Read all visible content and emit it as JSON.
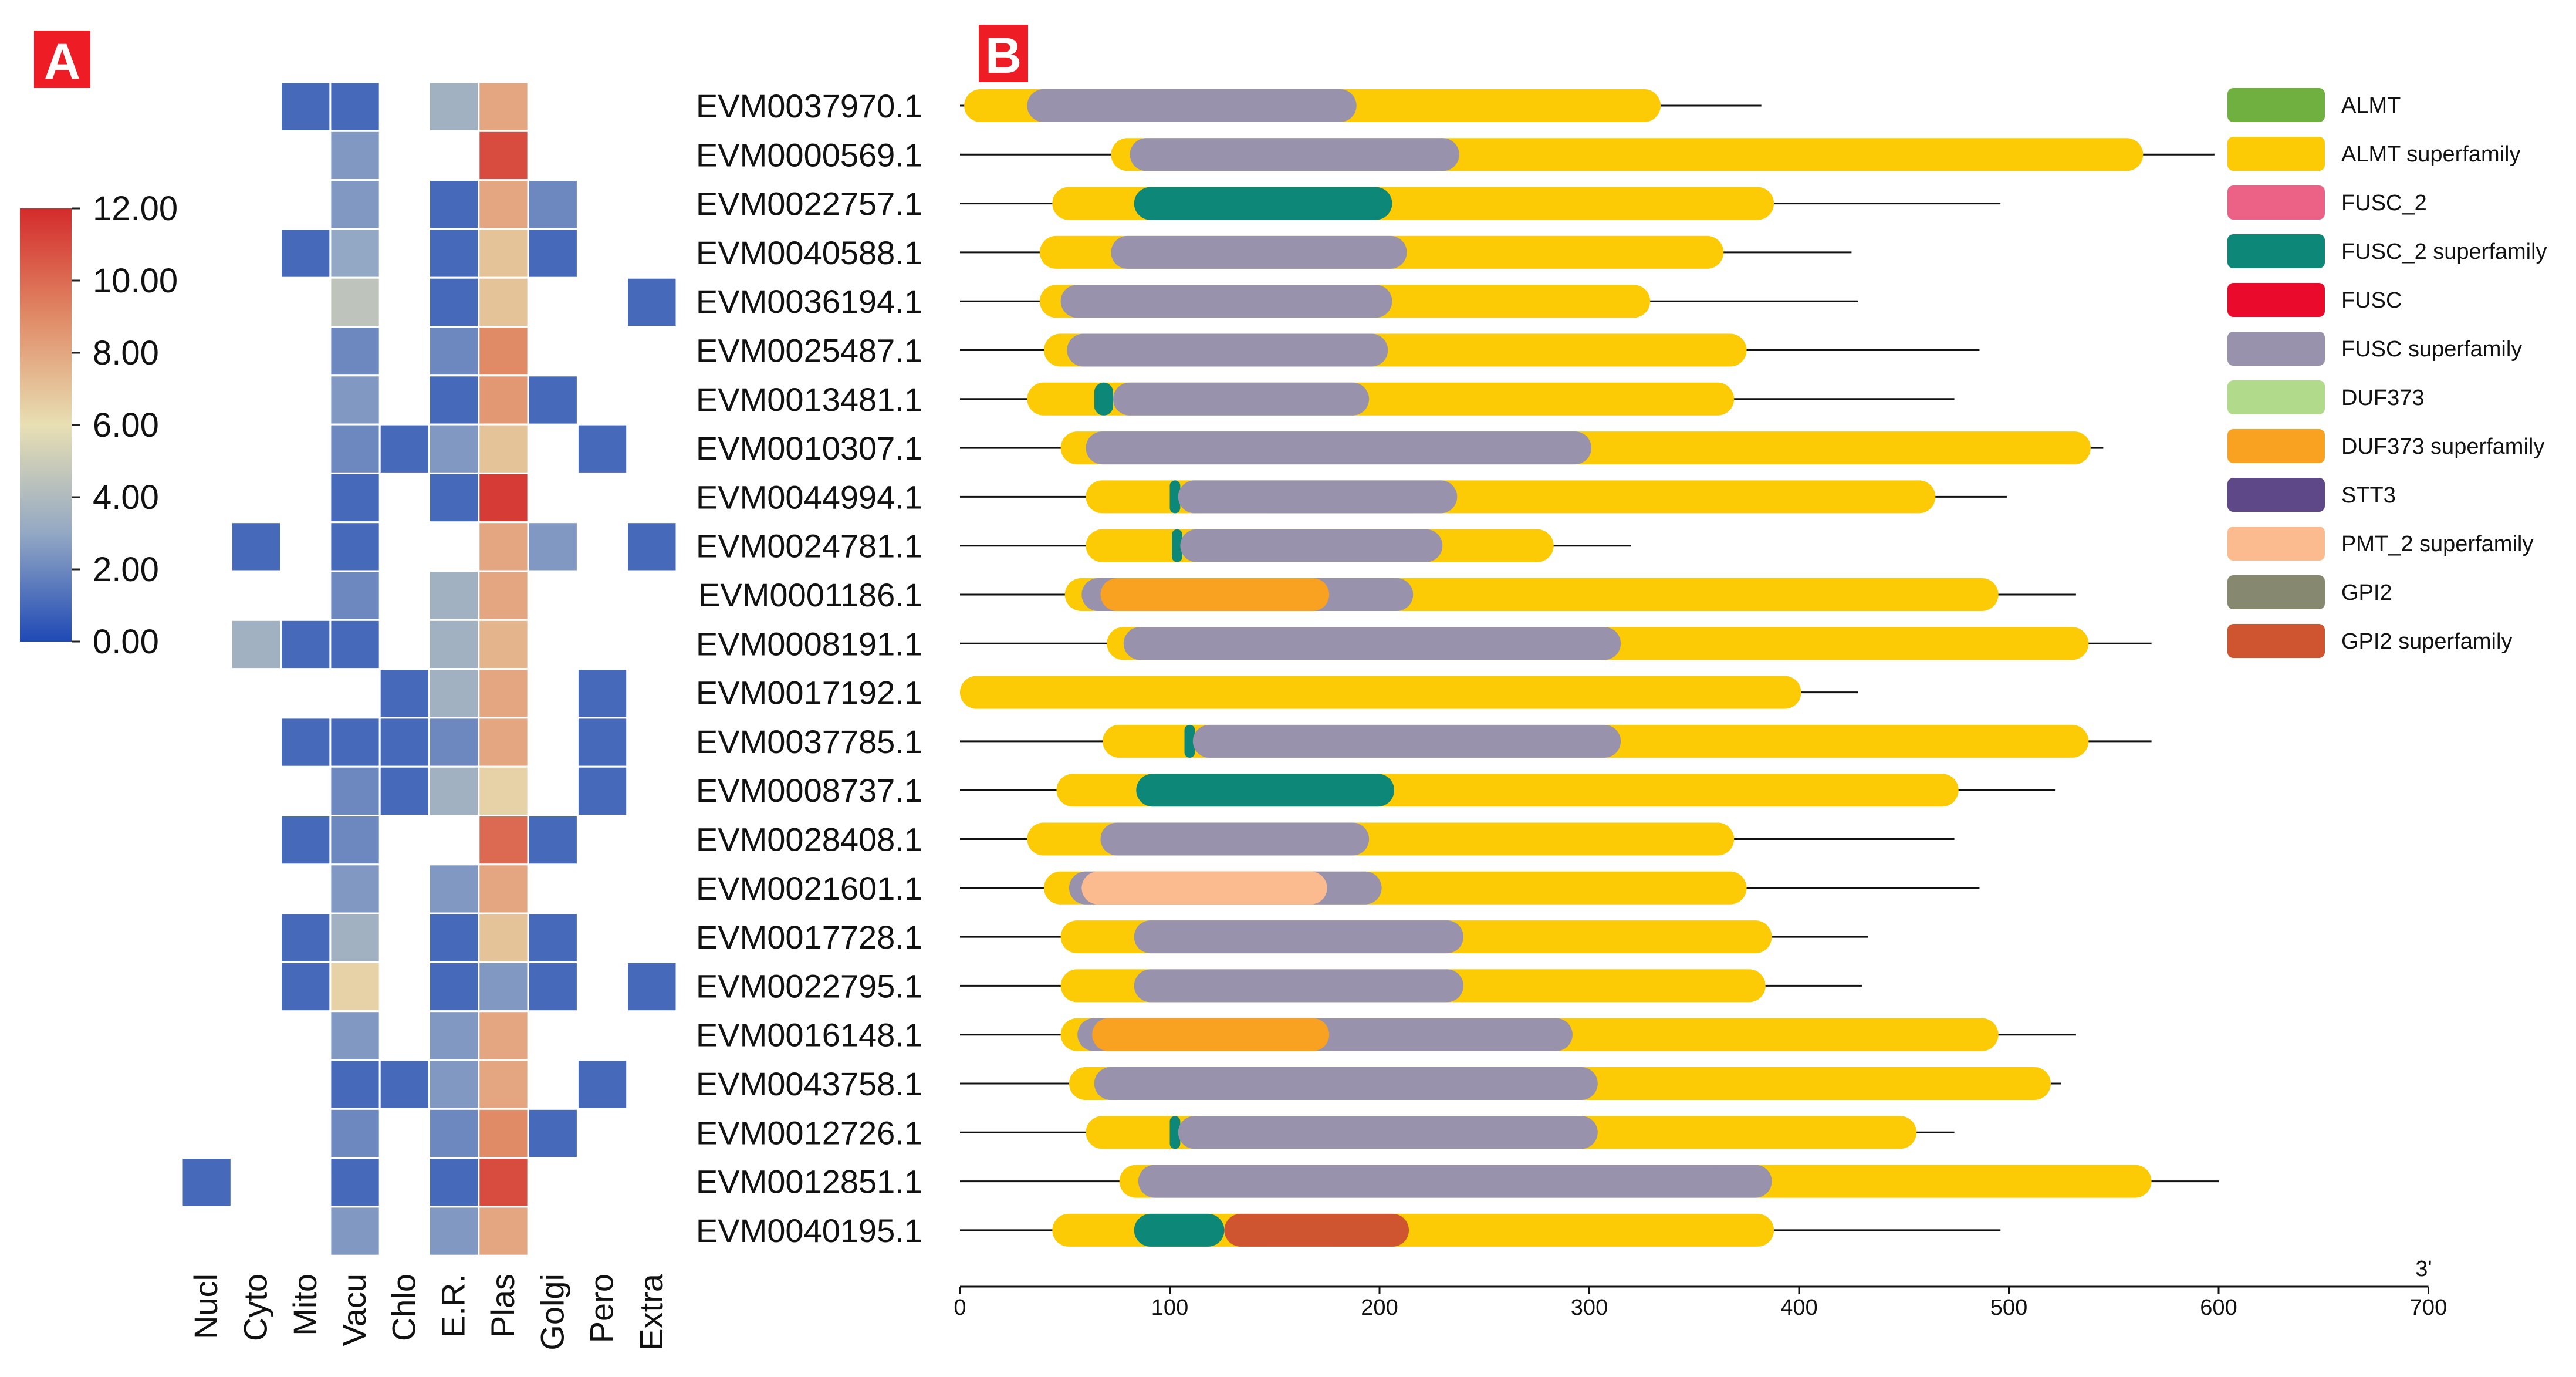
{
  "panels": {
    "a_label": "A",
    "b_label": "B"
  },
  "colors": {
    "panel_label_bg": "#ee1c25",
    "heat_scale": [
      "#1f49b5",
      "#93a8c4",
      "#e8dfb3",
      "#e08a66",
      "#d42b2b"
    ]
  },
  "chart_data": [
    {
      "type": "heatmap",
      "description": "Subcellular localization prediction scores",
      "columns": [
        "Nucl",
        "Cyto",
        "Mito",
        "Vacu",
        "Chlo",
        "E.R.",
        "Plas",
        "Golgi",
        "Pero",
        "Extra"
      ],
      "rows": [
        "EVM0037970.1",
        "EVM0000569.1",
        "EVM0022757.1",
        "EVM0040588.1",
        "EVM0036194.1",
        "EVM0025487.1",
        "EVM0013481.1",
        "EVM0010307.1",
        "EVM0044994.1",
        "EVM0024781.1",
        "EVM0001186.1",
        "EVM0008191.1",
        "EVM0017192.1",
        "EVM0037785.1",
        "EVM0008737.1",
        "EVM0028408.1",
        "EVM0021601.1",
        "EVM0017728.1",
        "EVM0022795.1",
        "EVM0016148.1",
        "EVM0043758.1",
        "EVM0012726.1",
        "EVM0012851.1",
        "EVM0040195.1"
      ],
      "values": [
        [
          null,
          null,
          1,
          1,
          null,
          3.5,
          8,
          null,
          null,
          null
        ],
        [
          null,
          null,
          null,
          2.5,
          null,
          null,
          11,
          null,
          null,
          null
        ],
        [
          null,
          null,
          null,
          2.5,
          null,
          1,
          8,
          2,
          null,
          null
        ],
        [
          null,
          null,
          1,
          3,
          null,
          1,
          7,
          1,
          null,
          null
        ],
        [
          null,
          null,
          null,
          4.5,
          null,
          1,
          7,
          null,
          null,
          1
        ],
        [
          null,
          null,
          null,
          2,
          null,
          2,
          9,
          null,
          null,
          null
        ],
        [
          null,
          null,
          null,
          2.5,
          null,
          1,
          8.5,
          1,
          null,
          null
        ],
        [
          null,
          null,
          null,
          2,
          1,
          2.5,
          7,
          null,
          1,
          null
        ],
        [
          null,
          null,
          null,
          1,
          null,
          1,
          11.5,
          null,
          null,
          null
        ],
        [
          null,
          1,
          null,
          1,
          null,
          null,
          8,
          2.5,
          null,
          1
        ],
        [
          null,
          null,
          null,
          2,
          null,
          3.5,
          8,
          null,
          null,
          null
        ],
        [
          null,
          3.5,
          1,
          1,
          null,
          3.5,
          7.5,
          null,
          null,
          null
        ],
        [
          null,
          null,
          null,
          null,
          1,
          3.5,
          8,
          null,
          1,
          null
        ],
        [
          null,
          null,
          1,
          1,
          1,
          2,
          8,
          null,
          1,
          null
        ],
        [
          null,
          null,
          null,
          2,
          1,
          3.5,
          6.5,
          null,
          1,
          null
        ],
        [
          null,
          null,
          1,
          2,
          null,
          null,
          10,
          1,
          null,
          null
        ],
        [
          null,
          null,
          null,
          2.5,
          null,
          2.5,
          8,
          null,
          null,
          null
        ],
        [
          null,
          null,
          1,
          3.5,
          null,
          1,
          7,
          1,
          null,
          null
        ],
        [
          null,
          null,
          1,
          6.5,
          null,
          1,
          2.5,
          1,
          null,
          1
        ],
        [
          null,
          null,
          null,
          2.5,
          null,
          2.5,
          8,
          null,
          null,
          null
        ],
        [
          null,
          null,
          null,
          1,
          1,
          2.5,
          8,
          null,
          1,
          null
        ],
        [
          null,
          null,
          null,
          2,
          null,
          2,
          9,
          1,
          null,
          null
        ],
        [
          1,
          null,
          null,
          1,
          null,
          1,
          11,
          null,
          null,
          null
        ],
        [
          null,
          null,
          null,
          2.5,
          null,
          2.5,
          8,
          null,
          null,
          null
        ]
      ],
      "colorbar_ticks": [
        "12.00",
        "10.00",
        "8.00",
        "6.00",
        "4.00",
        "2.00",
        "0.00"
      ],
      "range": [
        0,
        12
      ]
    },
    {
      "type": "bar",
      "description": "Protein domain architecture",
      "x_ticks": [
        0,
        100,
        200,
        300,
        400,
        500,
        600,
        700
      ],
      "x_tick_labels": [
        "0",
        "100",
        "200",
        "300",
        "400",
        "500",
        "600",
        "700"
      ],
      "x_end_label": "3'",
      "xlim": [
        0,
        700
      ],
      "legend": [
        {
          "label": "ALMT",
          "color": "#70b040"
        },
        {
          "label": "ALMT superfamily",
          "color": "#fccb05"
        },
        {
          "label": "FUSC_2",
          "color": "#ec6287"
        },
        {
          "label": "FUSC_2 superfamily",
          "color": "#0d8878"
        },
        {
          "label": "FUSC",
          "color": "#ea0a2c"
        },
        {
          "label": "FUSC superfamily",
          "color": "#9892ad"
        },
        {
          "label": "DUF373",
          "color": "#b1db8a"
        },
        {
          "label": "DUF373 superfamily",
          "color": "#f9a120"
        },
        {
          "label": "STT3",
          "color": "#5e4888"
        },
        {
          "label": "PMT_2 superfamily",
          "color": "#fbbb8f"
        },
        {
          "label": "GPI2",
          "color": "#868970"
        },
        {
          "label": "GPI2 superfamily",
          "color": "#cf5530"
        }
      ],
      "proteins": [
        {
          "name": "EVM0037970.1",
          "length": 382,
          "domains": [
            {
              "family": "ALMT superfamily",
              "start": 2,
              "end": 334
            },
            {
              "family": "FUSC superfamily",
              "start": 32,
              "end": 189
            }
          ]
        },
        {
          "name": "EVM0000569.1",
          "length": 598,
          "domains": [
            {
              "family": "ALMT superfamily",
              "start": 72,
              "end": 564
            },
            {
              "family": "FUSC superfamily",
              "start": 81,
              "end": 238
            }
          ]
        },
        {
          "name": "EVM0022757.1",
          "length": 496,
          "domains": [
            {
              "family": "ALMT superfamily",
              "start": 44,
              "end": 388
            },
            {
              "family": "FUSC_2 superfamily",
              "start": 83,
              "end": 206
            }
          ]
        },
        {
          "name": "EVM0040588.1",
          "length": 425,
          "domains": [
            {
              "family": "ALMT superfamily",
              "start": 38,
              "end": 364
            },
            {
              "family": "FUSC superfamily",
              "start": 72,
              "end": 213
            }
          ]
        },
        {
          "name": "EVM0036194.1",
          "length": 428,
          "domains": [
            {
              "family": "ALMT superfamily",
              "start": 38,
              "end": 329
            },
            {
              "family": "FUSC superfamily",
              "start": 48,
              "end": 206
            }
          ]
        },
        {
          "name": "EVM0025487.1",
          "length": 486,
          "domains": [
            {
              "family": "ALMT superfamily",
              "start": 40,
              "end": 375
            },
            {
              "family": "FUSC superfamily",
              "start": 51,
              "end": 204
            }
          ]
        },
        {
          "name": "EVM0013481.1",
          "length": 474,
          "domains": [
            {
              "family": "ALMT superfamily",
              "start": 32,
              "end": 369
            },
            {
              "family": "FUSC_2 superfamily",
              "start": 64,
              "end": 73
            },
            {
              "family": "FUSC superfamily",
              "start": 73,
              "end": 195
            }
          ]
        },
        {
          "name": "EVM0010307.1",
          "length": 545,
          "domains": [
            {
              "family": "ALMT superfamily",
              "start": 48,
              "end": 539
            },
            {
              "family": "FUSC superfamily",
              "start": 60,
              "end": 301
            }
          ]
        },
        {
          "name": "EVM0044994.1",
          "length": 499,
          "domains": [
            {
              "family": "ALMT superfamily",
              "start": 60,
              "end": 465
            },
            {
              "family": "FUSC_2 superfamily",
              "start": 100,
              "end": 105
            },
            {
              "family": "FUSC superfamily",
              "start": 104,
              "end": 237
            }
          ]
        },
        {
          "name": "EVM0024781.1",
          "length": 320,
          "domains": [
            {
              "family": "ALMT superfamily",
              "start": 60,
              "end": 283
            },
            {
              "family": "FUSC_2 superfamily",
              "start": 101,
              "end": 106
            },
            {
              "family": "FUSC superfamily",
              "start": 105,
              "end": 230
            }
          ]
        },
        {
          "name": "EVM0001186.1",
          "length": 532,
          "domains": [
            {
              "family": "ALMT superfamily",
              "start": 50,
              "end": 495
            },
            {
              "family": "FUSC superfamily",
              "start": 58,
              "end": 216
            },
            {
              "family": "DUF373 superfamily",
              "start": 67,
              "end": 176
            }
          ]
        },
        {
          "name": "EVM0008191.1",
          "length": 568,
          "domains": [
            {
              "family": "ALMT superfamily",
              "start": 70,
              "end": 538
            },
            {
              "family": "FUSC superfamily",
              "start": 78,
              "end": 315
            }
          ]
        },
        {
          "name": "EVM0017192.1",
          "length": 428,
          "domains": [
            {
              "family": "ALMT superfamily",
              "start": 0,
              "end": 401
            }
          ]
        },
        {
          "name": "EVM0037785.1",
          "length": 568,
          "domains": [
            {
              "family": "ALMT superfamily",
              "start": 68,
              "end": 538
            },
            {
              "family": "FUSC_2 superfamily",
              "start": 107,
              "end": 112
            },
            {
              "family": "FUSC superfamily",
              "start": 111,
              "end": 315
            }
          ]
        },
        {
          "name": "EVM0008737.1",
          "length": 522,
          "domains": [
            {
              "family": "ALMT superfamily",
              "start": 46,
              "end": 476
            },
            {
              "family": "FUSC_2 superfamily",
              "start": 84,
              "end": 207
            }
          ]
        },
        {
          "name": "EVM0028408.1",
          "length": 474,
          "domains": [
            {
              "family": "ALMT superfamily",
              "start": 32,
              "end": 369
            },
            {
              "family": "FUSC superfamily",
              "start": 67,
              "end": 195
            }
          ]
        },
        {
          "name": "EVM0021601.1",
          "length": 486,
          "domains": [
            {
              "family": "ALMT superfamily",
              "start": 40,
              "end": 375
            },
            {
              "family": "FUSC superfamily",
              "start": 52,
              "end": 201
            },
            {
              "family": "PMT_2 superfamily",
              "start": 58,
              "end": 175
            }
          ]
        },
        {
          "name": "EVM0017728.1",
          "length": 433,
          "domains": [
            {
              "family": "ALMT superfamily",
              "start": 48,
              "end": 387
            },
            {
              "family": "FUSC superfamily",
              "start": 83,
              "end": 240
            }
          ]
        },
        {
          "name": "EVM0022795.1",
          "length": 430,
          "domains": [
            {
              "family": "ALMT superfamily",
              "start": 48,
              "end": 384
            },
            {
              "family": "FUSC superfamily",
              "start": 83,
              "end": 240
            }
          ]
        },
        {
          "name": "EVM0016148.1",
          "length": 532,
          "domains": [
            {
              "family": "ALMT superfamily",
              "start": 48,
              "end": 495
            },
            {
              "family": "FUSC superfamily",
              "start": 56,
              "end": 292
            },
            {
              "family": "DUF373 superfamily",
              "start": 63,
              "end": 176
            }
          ]
        },
        {
          "name": "EVM0043758.1",
          "length": 525,
          "domains": [
            {
              "family": "ALMT superfamily",
              "start": 52,
              "end": 520
            },
            {
              "family": "FUSC superfamily",
              "start": 64,
              "end": 304
            }
          ]
        },
        {
          "name": "EVM0012726.1",
          "length": 474,
          "domains": [
            {
              "family": "ALMT superfamily",
              "start": 60,
              "end": 456
            },
            {
              "family": "FUSC_2 superfamily",
              "start": 100,
              "end": 105
            },
            {
              "family": "FUSC superfamily",
              "start": 104,
              "end": 304
            }
          ]
        },
        {
          "name": "EVM0012851.1",
          "length": 600,
          "domains": [
            {
              "family": "ALMT superfamily",
              "start": 76,
              "end": 568
            },
            {
              "family": "FUSC superfamily",
              "start": 85,
              "end": 387
            }
          ]
        },
        {
          "name": "EVM0040195.1",
          "length": 496,
          "domains": [
            {
              "family": "ALMT superfamily",
              "start": 44,
              "end": 388
            },
            {
              "family": "FUSC_2 superfamily",
              "start": 83,
              "end": 126
            },
            {
              "family": "GPI2 superfamily",
              "start": 126,
              "end": 214
            }
          ]
        }
      ]
    }
  ]
}
